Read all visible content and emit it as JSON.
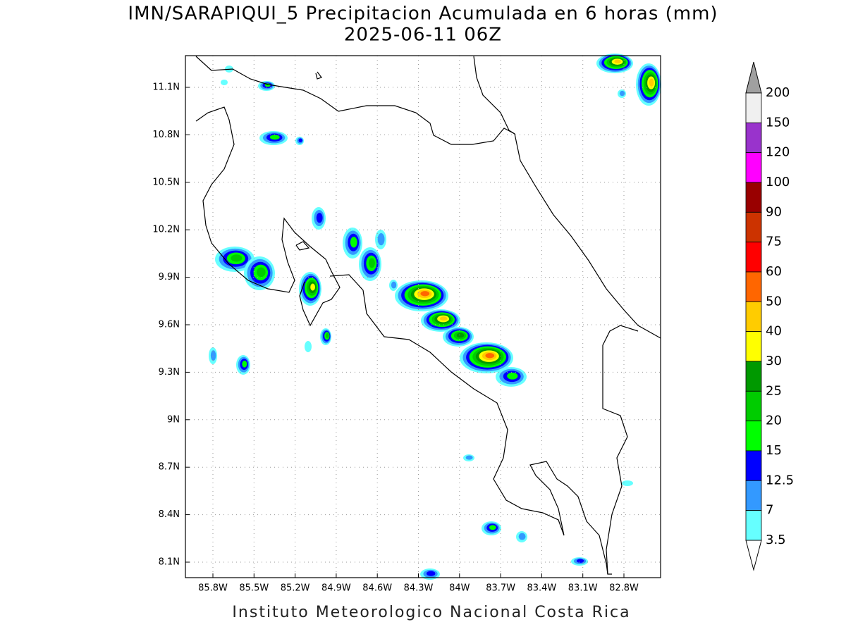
{
  "title": "IMN/SARAPIQUI_5 Precipitacion Acumulada en 6 horas (mm)",
  "subtitle": "2025-06-11 06Z",
  "lat_ticks": [
    "11.1N",
    "10.8N",
    "10.5N",
    "10.2N",
    "9.9N",
    "9.6N",
    "9.3N",
    "9N",
    "8.7N",
    "8.4N",
    "8.1N"
  ],
  "lon_ticks": [
    "85.8W",
    "85.5W",
    "85.2W",
    "84.9W",
    "84.6W",
    "84.3W",
    "84W",
    "83.7W",
    "83.4W",
    "83.1W",
    "82.8W"
  ],
  "colorbar": {
    "labels": [
      "200",
      "150",
      "120",
      "100",
      "90",
      "75",
      "60",
      "50",
      "40",
      "30",
      "25",
      "20",
      "15",
      "12.5",
      "7",
      "3.5"
    ],
    "colors": [
      "#f0f0f0",
      "#9933cc",
      "#ff00ff",
      "#990000",
      "#cc3300",
      "#ff0000",
      "#ff6600",
      "#ffcc00",
      "#ffff00",
      "#009900",
      "#00cc00",
      "#00ff00",
      "#0000ff",
      "#3399ff",
      "#66ffff"
    ],
    "over_color": "#a0a0a0",
    "under_color": "#ffffff"
  },
  "footer": "Instituto Meteorologico Nacional Costa Rica"
}
